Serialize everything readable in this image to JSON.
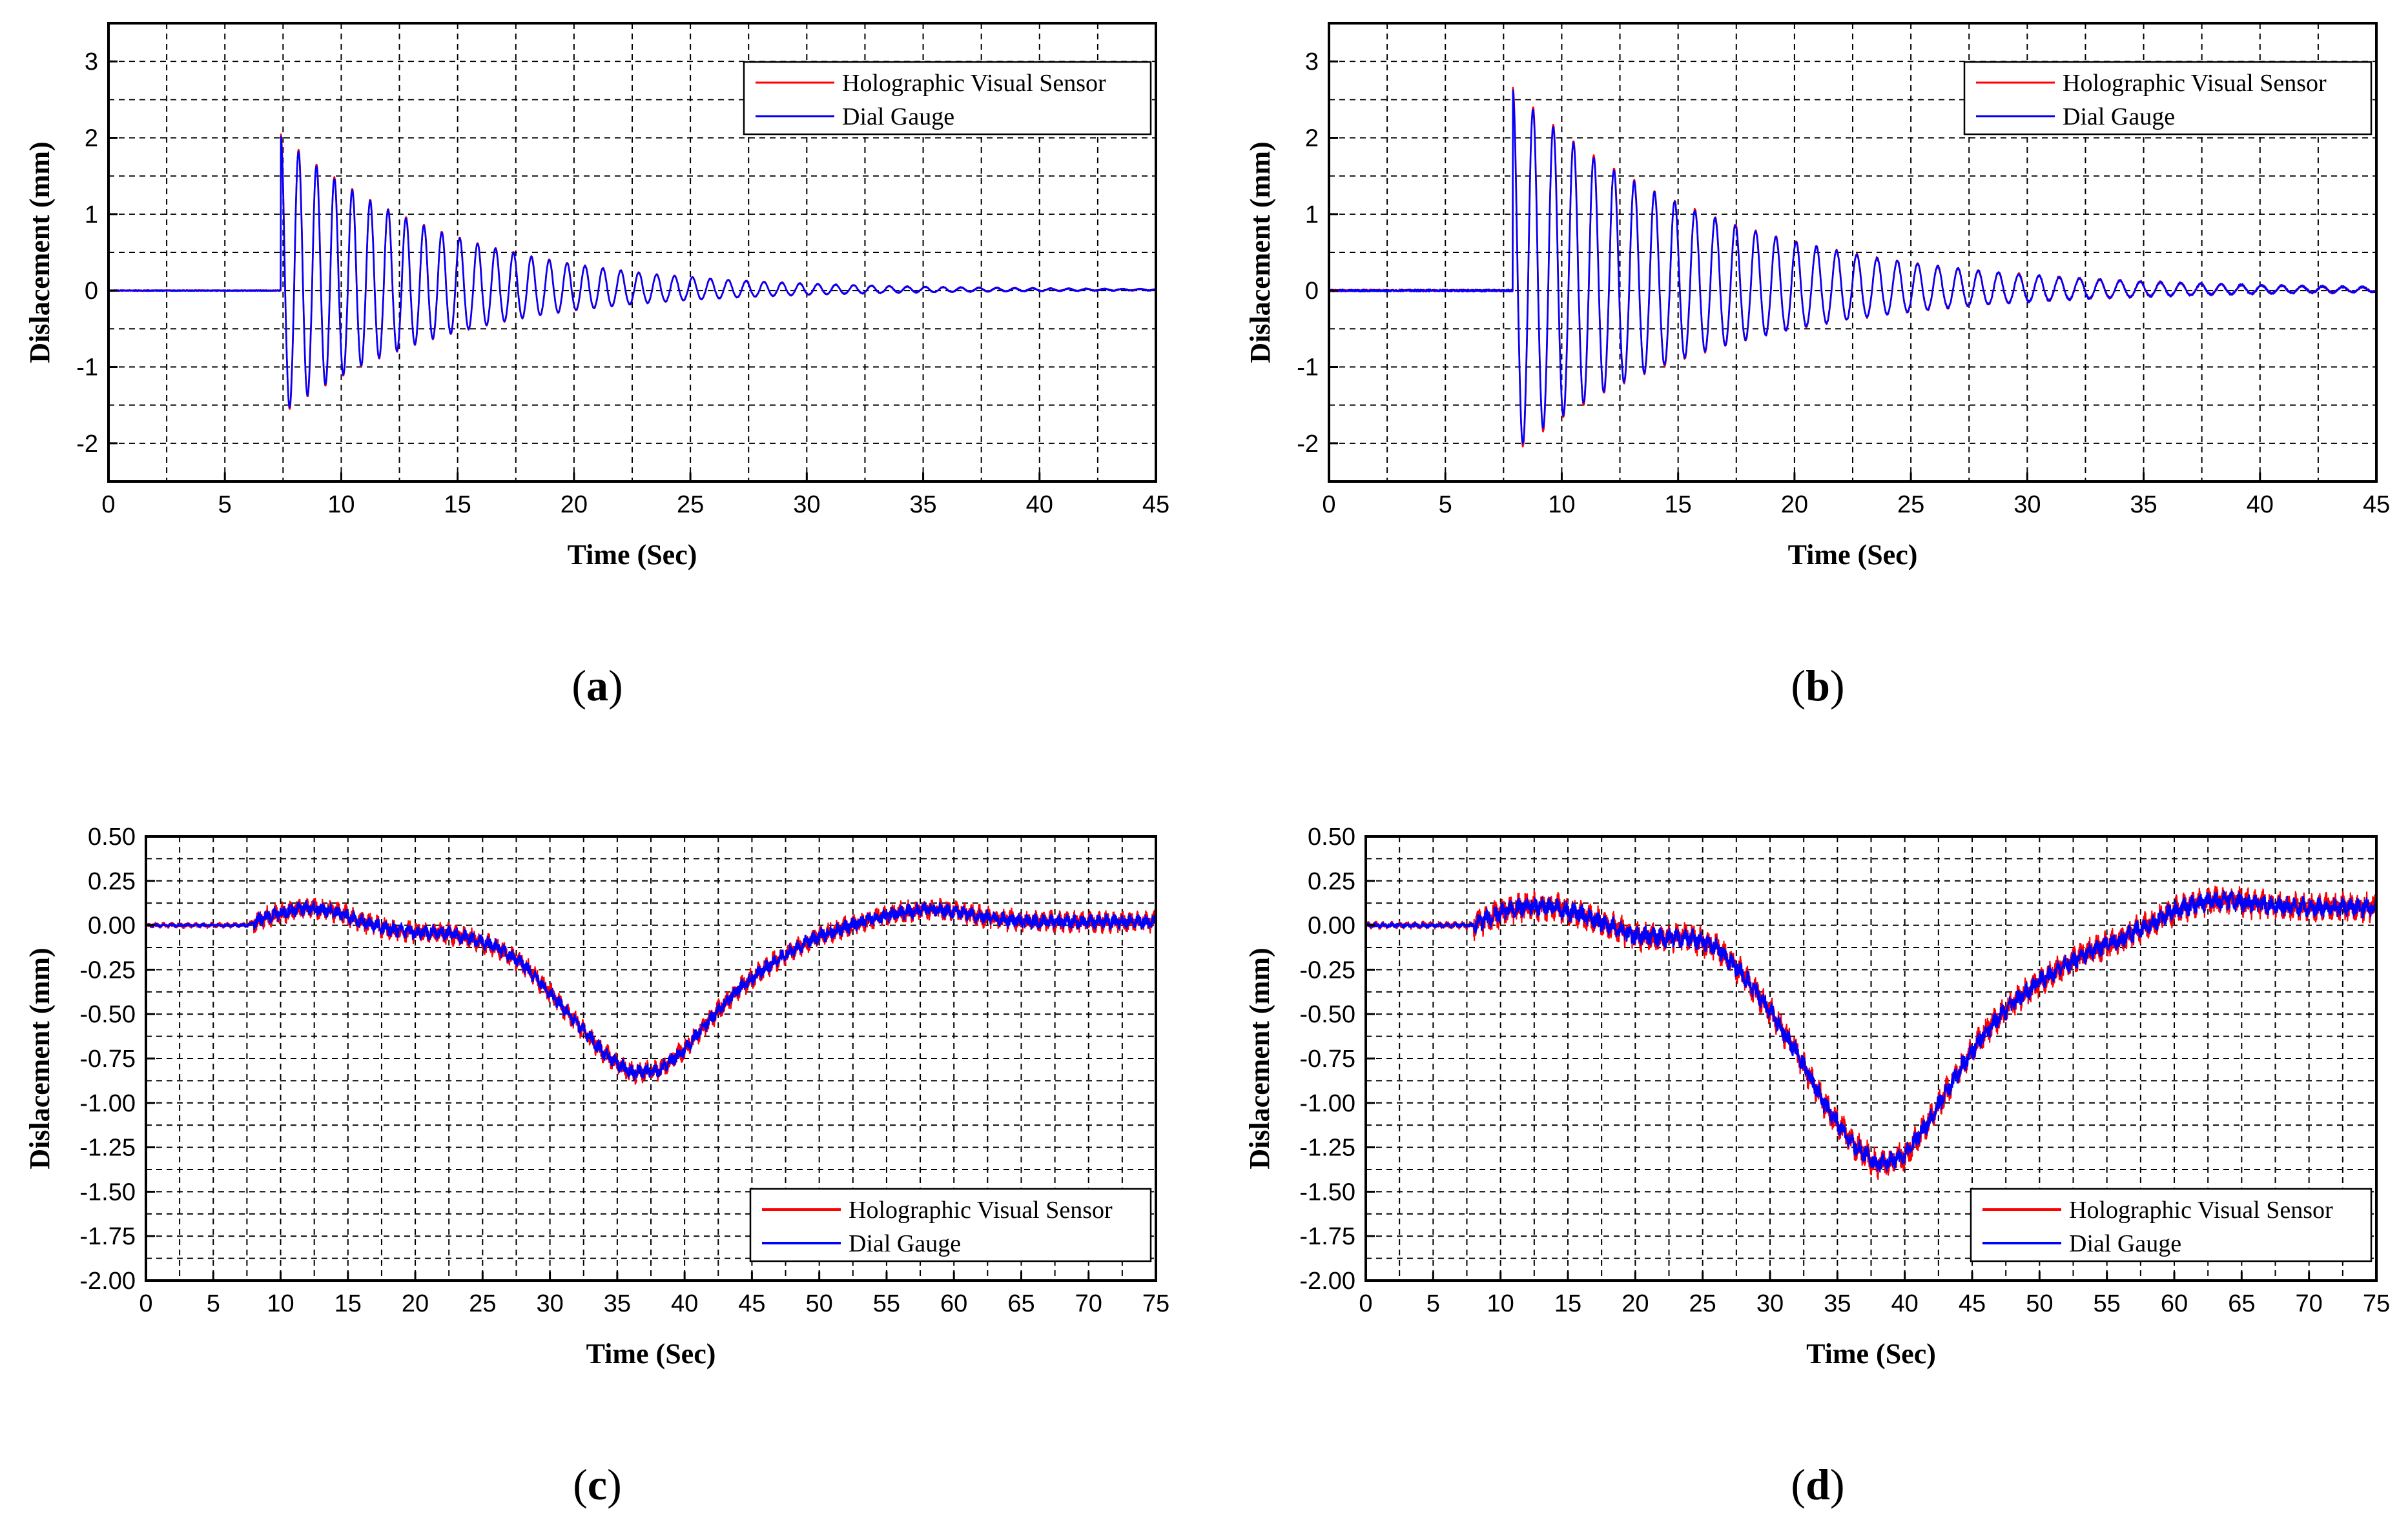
{
  "figure": {
    "panels": [
      "a",
      "b",
      "c",
      "d"
    ]
  },
  "colors": {
    "holographic": "#ff0000",
    "dial": "#0000ff",
    "grid": "#000000",
    "frame": "#000000"
  },
  "chart_data": [
    {
      "type": "line",
      "panel": "a",
      "panel_label": "a",
      "xlabel": "Time (Sec)",
      "ylabel": "Dislacement (mm)",
      "xlim": [
        0,
        45
      ],
      "ylim": [
        -2.5,
        3.5
      ],
      "xticks": [
        0,
        5,
        10,
        15,
        20,
        25,
        30,
        35,
        40,
        45
      ],
      "xtick_labels": [
        "0",
        "5",
        "10",
        "15",
        "20",
        "25",
        "30",
        "35",
        "40",
        "45"
      ],
      "yticks": [
        -2,
        -1,
        0,
        1,
        2,
        3
      ],
      "ytick_labels": [
        "-2",
        "-1",
        "0",
        "1",
        "2",
        "3"
      ],
      "ygrid_step": 0.5,
      "xgrid_step": 2.5,
      "legend_position": "top-right",
      "series": [
        {
          "name": "Holographic Visual Sensor",
          "color": "#ff0000"
        },
        {
          "name": "Dial Gauge",
          "color": "#0000ff"
        }
      ],
      "signal": {
        "kind": "decay",
        "onset": 7.4,
        "peak": 2.05,
        "trough": -1.65,
        "decay_time": 7.0,
        "frequency": 1.3,
        "noise": 0.0
      }
    },
    {
      "type": "line",
      "panel": "b",
      "panel_label": "b",
      "xlabel": "Time (Sec)",
      "ylabel": "Dislacement (mm)",
      "xlim": [
        0,
        45
      ],
      "ylim": [
        -2.5,
        3.5
      ],
      "xticks": [
        0,
        5,
        10,
        15,
        20,
        25,
        30,
        35,
        40,
        45
      ],
      "xtick_labels": [
        "0",
        "5",
        "10",
        "15",
        "20",
        "25",
        "30",
        "35",
        "40",
        "45"
      ],
      "yticks": [
        -2,
        -1,
        0,
        1,
        2,
        3
      ],
      "ytick_labels": [
        "-2",
        "-1",
        "0",
        "1",
        "2",
        "3"
      ],
      "ygrid_step": 0.5,
      "xgrid_step": 2.5,
      "legend_position": "top-right",
      "series": [
        {
          "name": "Holographic Visual Sensor",
          "color": "#ff0000"
        },
        {
          "name": "Dial Gauge",
          "color": "#0000ff"
        }
      ],
      "signal": {
        "kind": "decay",
        "onset": 7.9,
        "peak": 2.65,
        "trough": -2.15,
        "decay_time": 8.5,
        "frequency": 1.15,
        "noise": 0.01
      }
    },
    {
      "type": "line",
      "panel": "c",
      "panel_label": "c",
      "xlabel": "Time (Sec)",
      "ylabel": "Dislacement (mm)",
      "xlim": [
        0,
        75
      ],
      "ylim": [
        -2.0,
        0.5
      ],
      "xticks": [
        0,
        5,
        10,
        15,
        20,
        25,
        30,
        35,
        40,
        45,
        50,
        55,
        60,
        65,
        70,
        75
      ],
      "xtick_labels": [
        "0",
        "5",
        "10",
        "15",
        "20",
        "25",
        "30",
        "35",
        "40",
        "45",
        "50",
        "55",
        "60",
        "65",
        "70",
        "75"
      ],
      "yticks": [
        -2.0,
        -1.75,
        -1.5,
        -1.25,
        -1.0,
        -0.75,
        -0.5,
        -0.25,
        0.0,
        0.25,
        0.5
      ],
      "ytick_labels": [
        "-2.00",
        "-1.75",
        "-1.50",
        "-1.25",
        "-1.00",
        "-0.75",
        "-0.50",
        "-0.25",
        "0.00",
        "0.25",
        "0.50"
      ],
      "ygrid_step": 0.125,
      "xgrid_step": 2.5,
      "legend_position": "bottom-right",
      "series": [
        {
          "name": "Holographic Visual Sensor",
          "color": "#ff0000"
        },
        {
          "name": "Dial Gauge",
          "color": "#0000ff"
        }
      ],
      "envelope": {
        "t": [
          0,
          7.5,
          9,
          12,
          14,
          16,
          18,
          20,
          22,
          24,
          26,
          28,
          30,
          32,
          34,
          36,
          38,
          40,
          42,
          44,
          46,
          48,
          50,
          52,
          54,
          56,
          58,
          60,
          62,
          64,
          66,
          70,
          75
        ],
        "y": [
          0.0,
          0.0,
          0.05,
          0.1,
          0.08,
          0.02,
          -0.02,
          -0.04,
          -0.04,
          -0.07,
          -0.12,
          -0.22,
          -0.38,
          -0.55,
          -0.72,
          -0.83,
          -0.82,
          -0.7,
          -0.52,
          -0.36,
          -0.24,
          -0.14,
          -0.06,
          -0.01,
          0.04,
          0.07,
          0.09,
          0.08,
          0.05,
          0.03,
          0.02,
          0.02,
          0.02
        ]
      },
      "noise": {
        "red": 0.045,
        "blue": 0.03
      }
    },
    {
      "type": "line",
      "panel": "d",
      "panel_label": "d",
      "xlabel": "Time (Sec)",
      "ylabel": "Dislacement (mm)",
      "xlim": [
        0,
        75
      ],
      "ylim": [
        -2.0,
        0.5
      ],
      "xticks": [
        0,
        5,
        10,
        15,
        20,
        25,
        30,
        35,
        40,
        45,
        50,
        55,
        60,
        65,
        70,
        75
      ],
      "xtick_labels": [
        "0",
        "5",
        "10",
        "15",
        "20",
        "25",
        "30",
        "35",
        "40",
        "45",
        "50",
        "55",
        "60",
        "65",
        "70",
        "75"
      ],
      "yticks": [
        -2.0,
        -1.75,
        -1.5,
        -1.25,
        -1.0,
        -0.75,
        -0.5,
        -0.25,
        0.0,
        0.25,
        0.5
      ],
      "ytick_labels": [
        "-2.00",
        "-1.75",
        "-1.50",
        "-1.25",
        "-1.00",
        "-0.75",
        "-0.50",
        "-0.25",
        "0.00",
        "0.25",
        "0.50"
      ],
      "ygrid_step": 0.125,
      "xgrid_step": 2.5,
      "legend_position": "bottom-right",
      "series": [
        {
          "name": "Holographic Visual Sensor",
          "color": "#ff0000"
        },
        {
          "name": "Dial Gauge",
          "color": "#0000ff"
        }
      ],
      "envelope": {
        "t": [
          0,
          8,
          10,
          12,
          14,
          16,
          18,
          20,
          22,
          24,
          26,
          28,
          30,
          32,
          34,
          36,
          38,
          40,
          42,
          44,
          46,
          48,
          50,
          52,
          54,
          56,
          58,
          60,
          62,
          64,
          66,
          70,
          75
        ],
        "y": [
          0.0,
          0.0,
          0.07,
          0.11,
          0.1,
          0.06,
          0.0,
          -0.06,
          -0.07,
          -0.07,
          -0.12,
          -0.28,
          -0.48,
          -0.72,
          -1.0,
          -1.22,
          -1.35,
          -1.3,
          -1.08,
          -0.82,
          -0.6,
          -0.44,
          -0.32,
          -0.22,
          -0.14,
          -0.08,
          0.0,
          0.08,
          0.13,
          0.14,
          0.12,
          0.1,
          0.1
        ]
      },
      "noise": {
        "red": 0.06,
        "blue": 0.04
      }
    }
  ]
}
